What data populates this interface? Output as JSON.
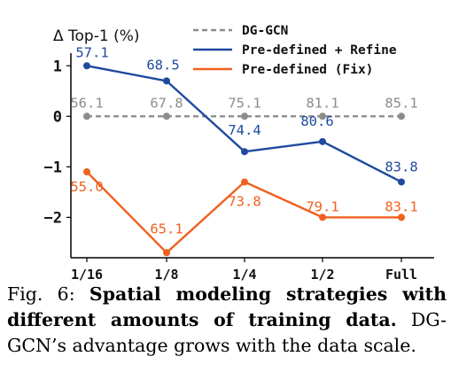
{
  "chart_data": {
    "type": "line",
    "ylabel": "Δ Top-1 (%)",
    "categories": [
      "1/16",
      "1/8",
      "1/4",
      "1/2",
      "Full"
    ],
    "ylim": [
      -2.8,
      1.25
    ],
    "yticks": [
      1,
      0,
      -1,
      -2
    ],
    "ytick_labels": [
      "1",
      "0",
      "−1",
      "−2"
    ],
    "grid": false,
    "legend_position": "top-right",
    "series": [
      {
        "name": "DG-GCN",
        "color": "#8c8c8c",
        "dashed": true,
        "values": [
          0,
          0,
          0,
          0,
          0
        ],
        "labels": [
          "56.1",
          "67.8",
          "75.1",
          "81.1",
          "85.1"
        ]
      },
      {
        "name": "Pre-defined + Refine",
        "color": "#1f4aa0",
        "dashed": false,
        "values": [
          1.0,
          0.7,
          -0.7,
          -0.5,
          -1.3
        ],
        "labels": [
          "57.1",
          "68.5",
          "74.4",
          "80.6",
          "83.8"
        ]
      },
      {
        "name": "Pre-defined (Fix)",
        "color": "#f0601e",
        "dashed": false,
        "values": [
          -1.1,
          -2.7,
          -1.3,
          -2.0,
          -2.0
        ],
        "labels": [
          "55.0",
          "65.1",
          "73.8",
          "79.1",
          "83.1"
        ]
      }
    ]
  },
  "caption": {
    "prefix": "Fig. 6:",
    "bold": "Spatial modeling strategies with different amounts of training data.",
    "rest": "DG-GCN’s advantage grows with the data scale."
  }
}
